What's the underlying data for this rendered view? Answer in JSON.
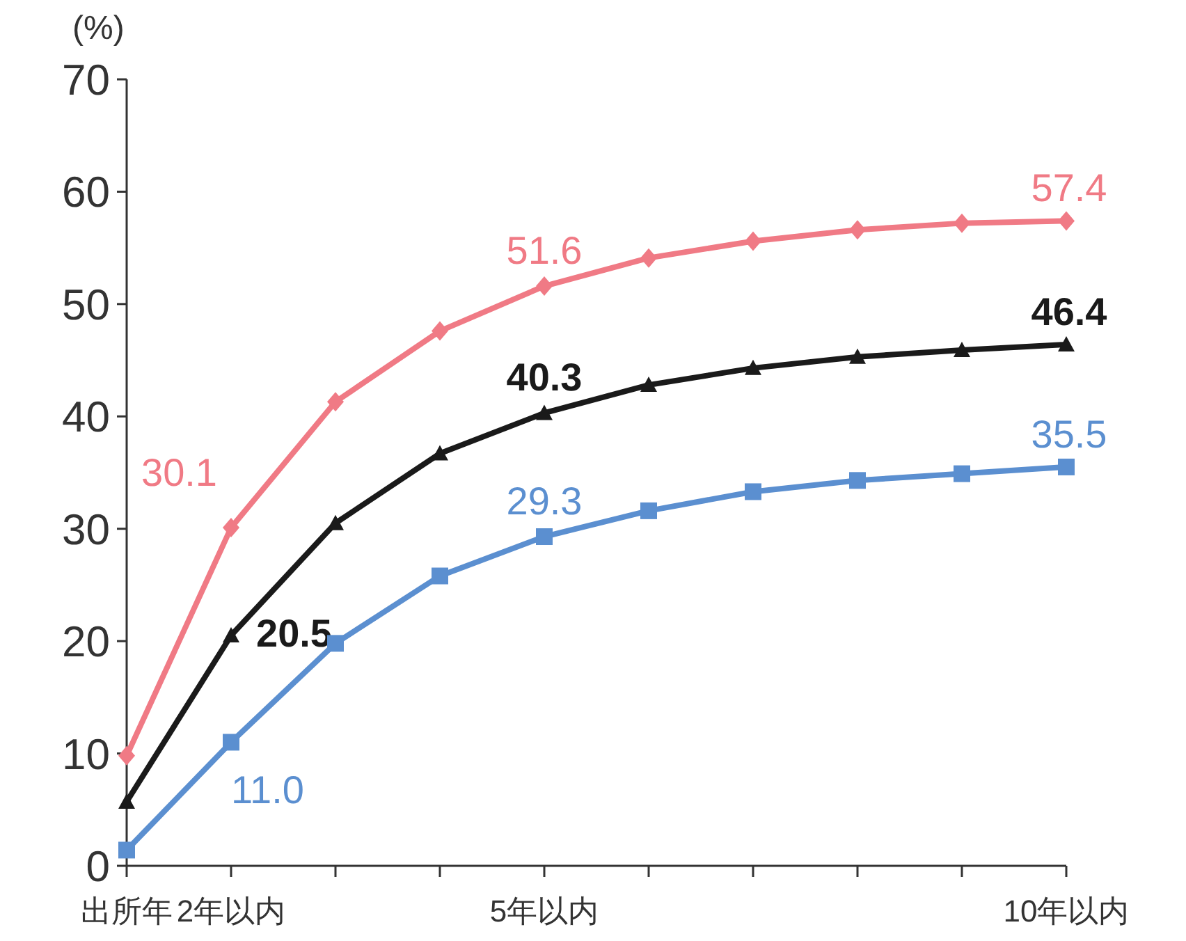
{
  "chart_data": {
    "type": "line",
    "ylabel": "(%)",
    "categories": [
      "出所年",
      "2年以内",
      null,
      null,
      "5年以内",
      null,
      null,
      null,
      null,
      "10年以内"
    ],
    "ylim": [
      0,
      70
    ],
    "yticks": [
      0,
      10,
      20,
      30,
      40,
      50,
      60,
      70
    ],
    "grid": false,
    "series": [
      {
        "color": "#f07a85",
        "marker": "diamond",
        "values": [
          9.8,
          30.1,
          41.3,
          47.6,
          51.6,
          54.1,
          55.6,
          56.6,
          57.2,
          57.4
        ],
        "value_labels": [
          null,
          "30.1",
          null,
          null,
          "51.6",
          null,
          null,
          null,
          null,
          "57.4"
        ]
      },
      {
        "color": "#1a1a1a",
        "marker": "triangle",
        "values": [
          5.7,
          20.5,
          30.5,
          36.7,
          40.3,
          42.8,
          44.3,
          45.3,
          45.9,
          46.4
        ],
        "value_labels": [
          null,
          "20.5",
          null,
          null,
          "40.3",
          null,
          null,
          null,
          null,
          "46.4"
        ]
      },
      {
        "color": "#5b8fd0",
        "marker": "square",
        "values": [
          1.4,
          11.0,
          19.8,
          25.8,
          29.3,
          31.6,
          33.3,
          34.3,
          34.9,
          35.5
        ],
        "value_labels": [
          null,
          "11.0",
          null,
          null,
          "29.3",
          null,
          null,
          null,
          null,
          "35.5"
        ]
      }
    ]
  }
}
